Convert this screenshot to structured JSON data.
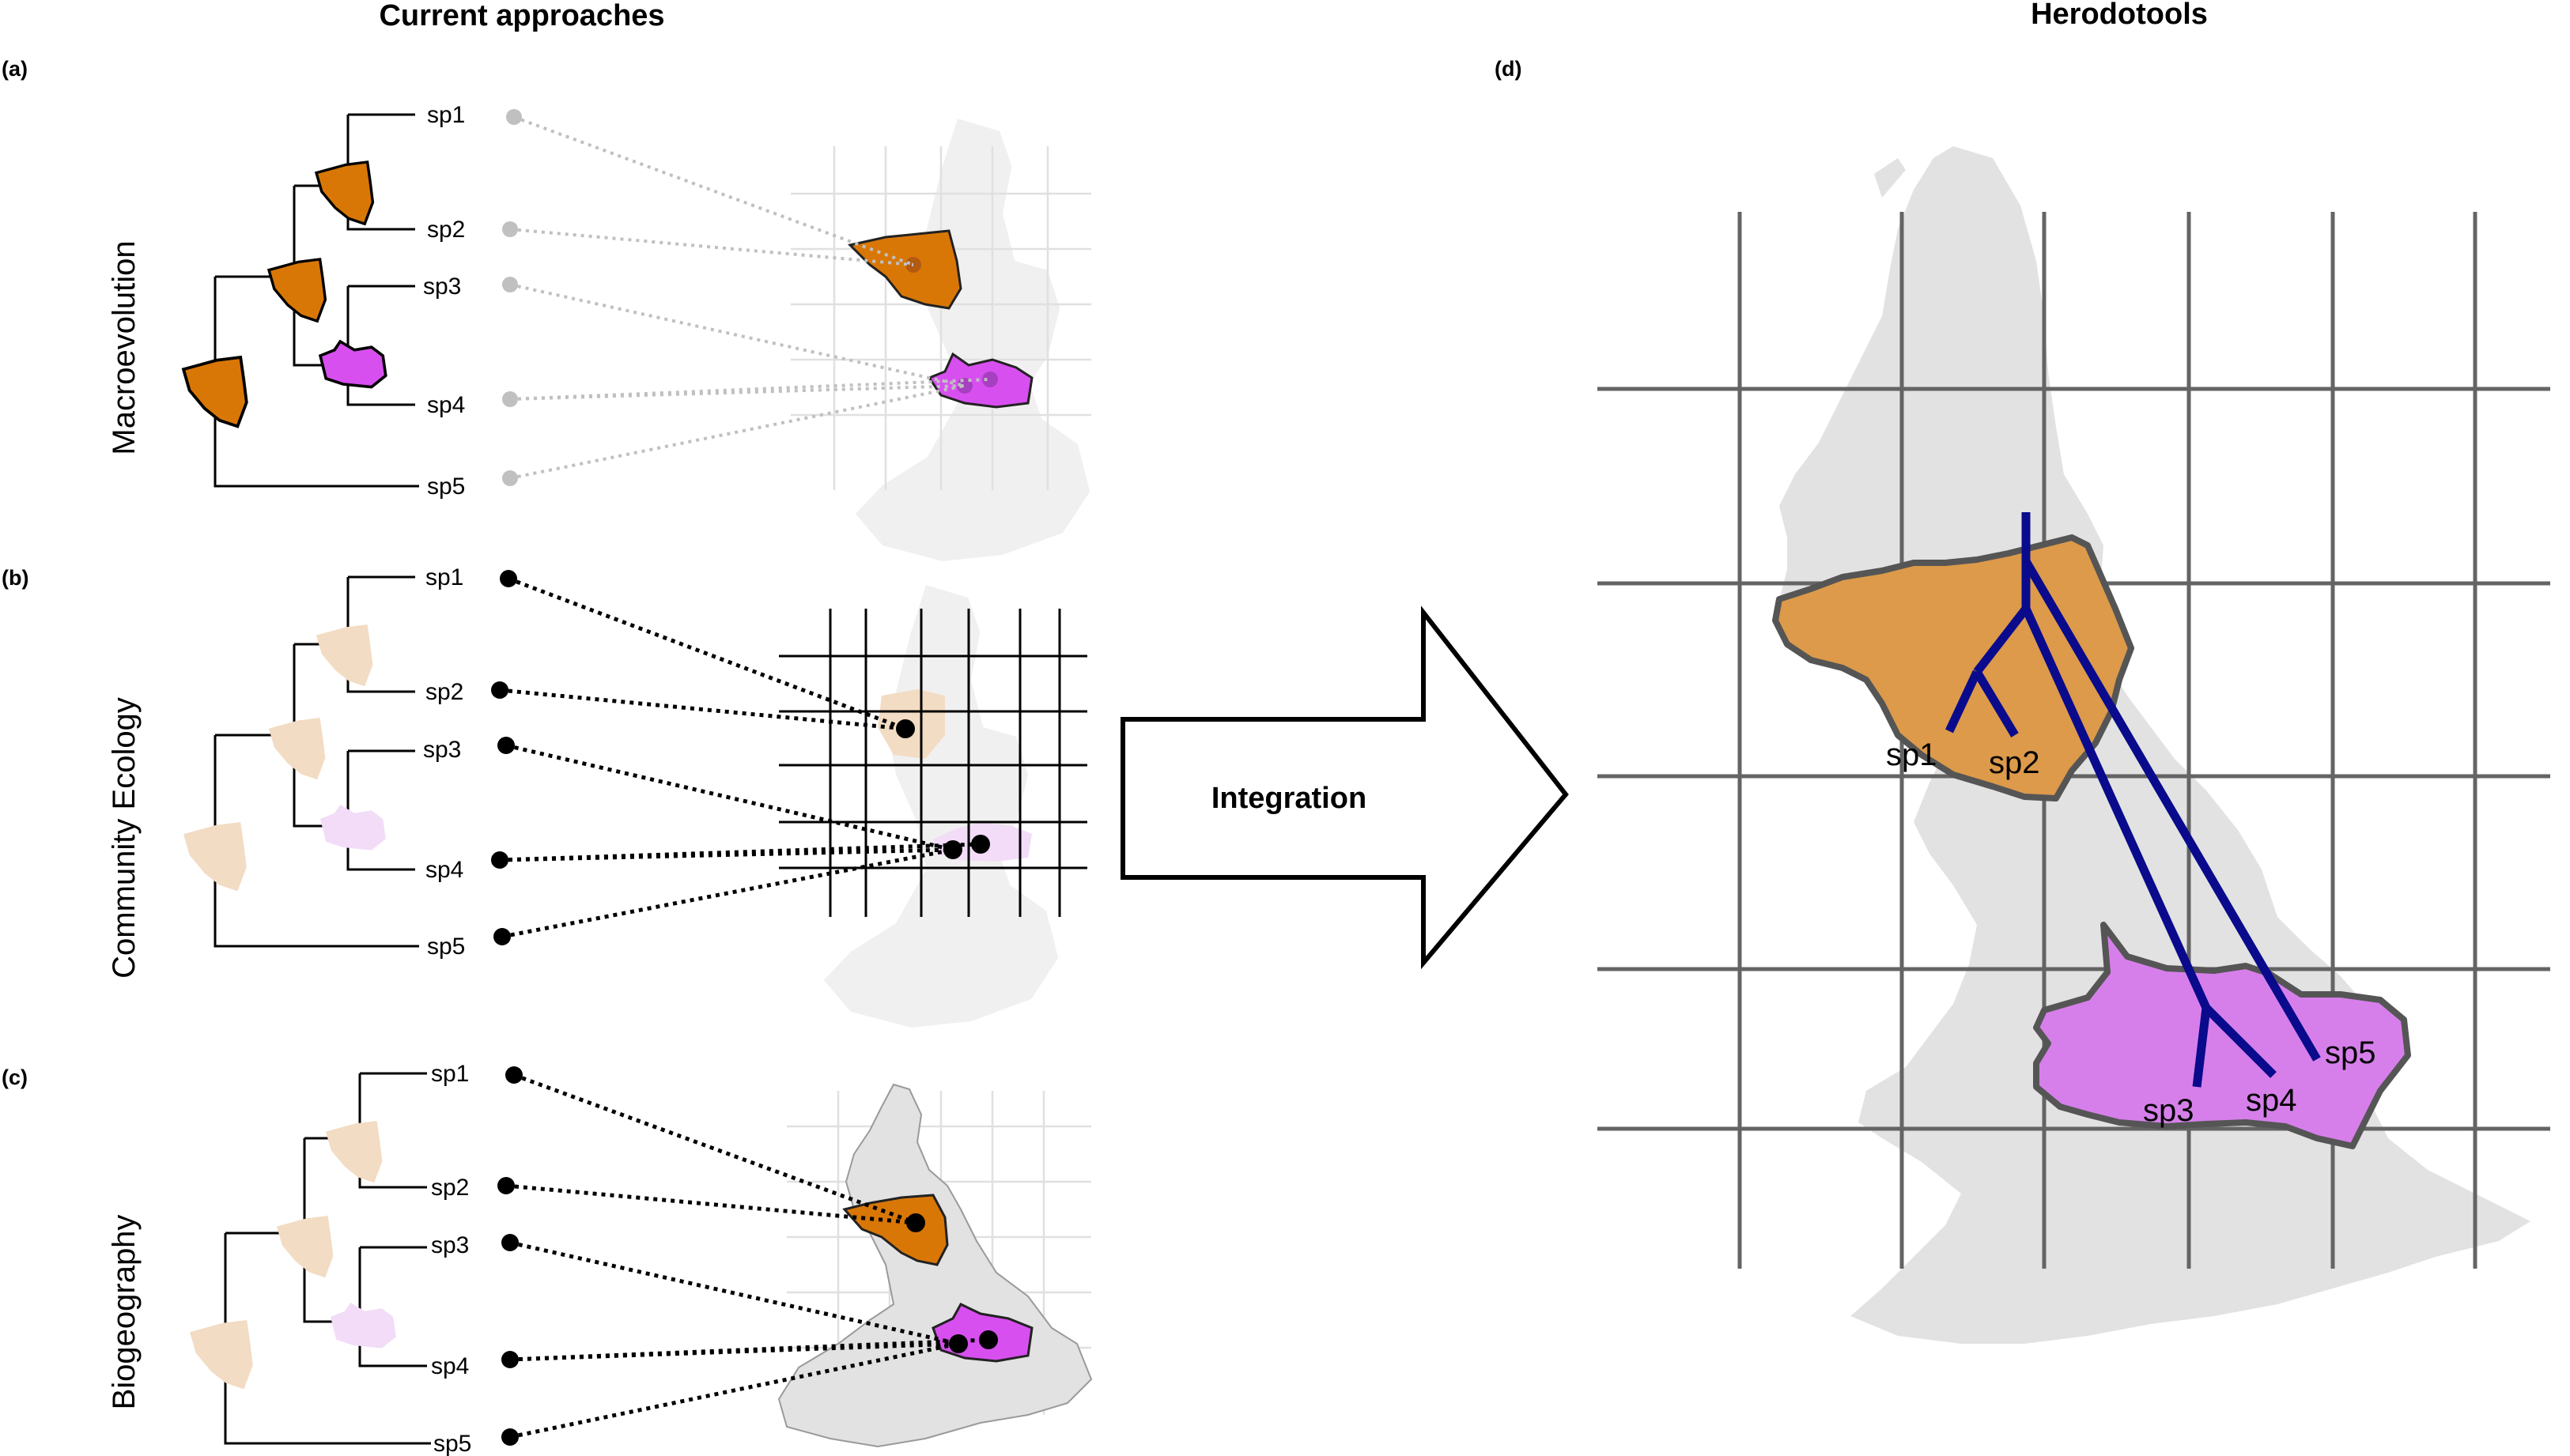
{
  "headings": {
    "left": "Current approaches",
    "right": "Herodotools"
  },
  "panels": {
    "a": {
      "letter": "(a)",
      "row_label": "Macroevolution"
    },
    "b": {
      "letter": "(b)",
      "row_label": "Community Ecology"
    },
    "c": {
      "letter": "(c)",
      "row_label": "Biogeography"
    },
    "d": {
      "letter": "(d)"
    }
  },
  "species": [
    "sp1",
    "sp2",
    "sp3",
    "sp4",
    "sp5"
  ],
  "arrow": {
    "label": "Integration"
  },
  "colors": {
    "orange_range": "#d97706",
    "orange_light": "#f3dcc4",
    "orange_big": "#dc9a4a",
    "purple_range": "#d84ff0",
    "purple_light": "#f2dcf8",
    "purple_big": "#d67fea",
    "tree_blue": "#0a0a8c",
    "map_grey": "#e2e2e2",
    "grid_grey": "#646464",
    "dot_grey": "#c0c0c0"
  }
}
